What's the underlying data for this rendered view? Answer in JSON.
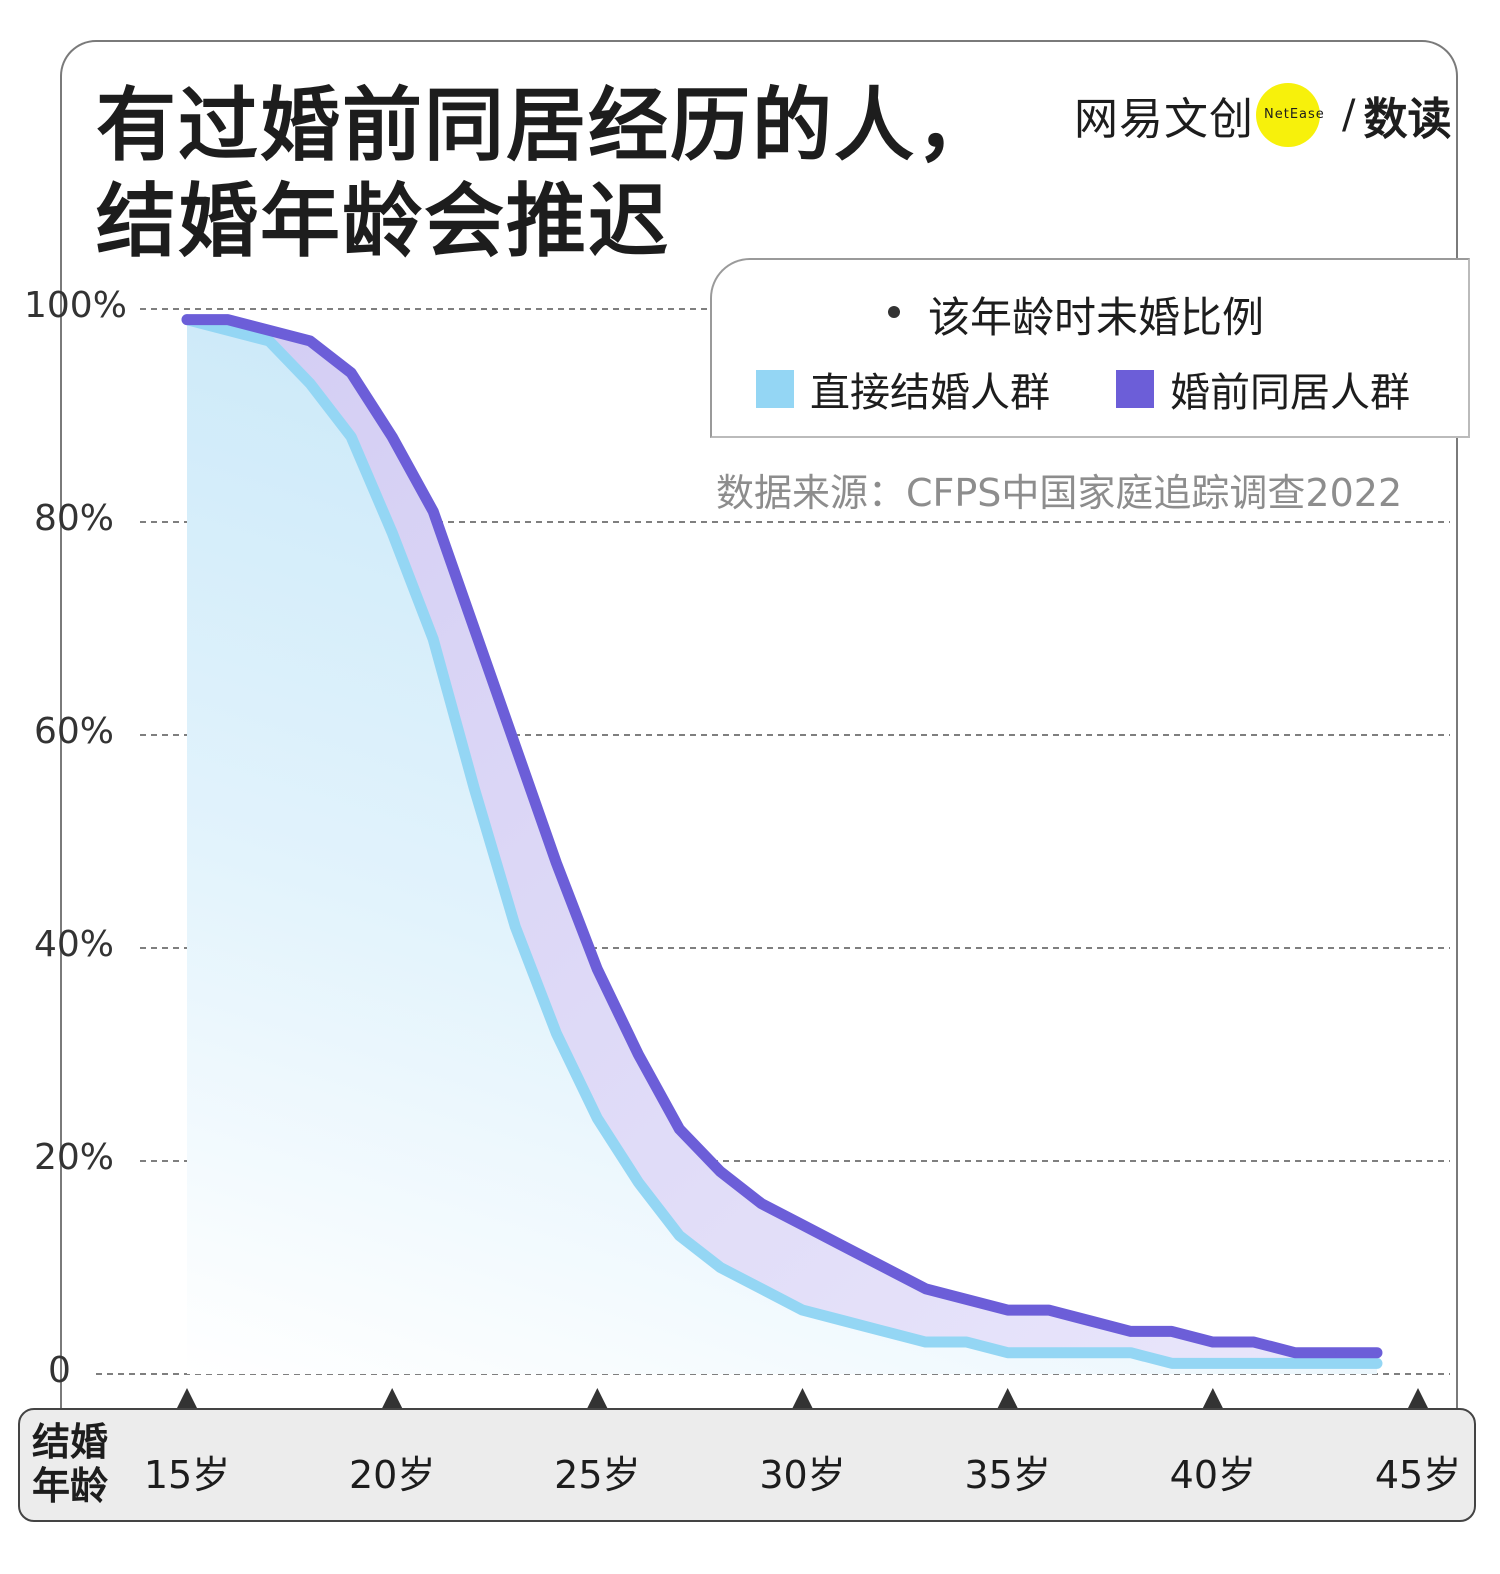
{
  "title": {
    "line1": "有过婚前同居经历的人，",
    "line2": "结婚年龄会推迟"
  },
  "brand": {
    "cn": "网易文创",
    "en": "NetEase",
    "slash": "/",
    "shudu": "数读"
  },
  "legend": {
    "title": "该年龄时未婚比例",
    "items": [
      {
        "label": "直接结婚人群",
        "color": "#94d6f4"
      },
      {
        "label": "婚前同居人群",
        "color": "#6c5ed8"
      }
    ]
  },
  "source": "数据来源：CFPS中国家庭追踪调查2022",
  "x_axis_title": [
    "结婚",
    "年龄"
  ],
  "chart_data": {
    "type": "area",
    "title": "有过婚前同居经历的人，结婚年龄会推迟",
    "xlabel": "结婚年龄",
    "ylabel": "该年龄时未婚比例",
    "x_ticks": [
      15,
      20,
      25,
      30,
      35,
      40,
      45
    ],
    "x_tick_labels": [
      "15岁",
      "20岁",
      "25岁",
      "30岁",
      "35岁",
      "40岁",
      "45岁"
    ],
    "y_ticks": [
      0,
      20,
      40,
      60,
      80,
      100
    ],
    "y_tick_labels": [
      "0",
      "20%",
      "40%",
      "60%",
      "80%",
      "100%"
    ],
    "xlim": [
      15,
      45
    ],
    "ylim": [
      0,
      100
    ],
    "x": [
      15,
      16,
      17,
      18,
      19,
      20,
      21,
      22,
      23,
      24,
      25,
      26,
      27,
      28,
      29,
      30,
      31,
      32,
      33,
      34,
      35,
      36,
      37,
      38,
      39,
      40,
      41,
      42,
      43,
      44
    ],
    "series": [
      {
        "name": "直接结婚人群",
        "color": "#94d6f4",
        "values": [
          99,
          98,
          97,
          93,
          88,
          79,
          69,
          55,
          42,
          32,
          24,
          18,
          13,
          10,
          8,
          6,
          5,
          4,
          3,
          3,
          2,
          2,
          2,
          2,
          1,
          1,
          1,
          1,
          1,
          1
        ]
      },
      {
        "name": "婚前同居人群",
        "color": "#6c5ed8",
        "values": [
          99,
          99,
          98,
          97,
          94,
          88,
          81,
          70,
          59,
          48,
          38,
          30,
          23,
          19,
          16,
          14,
          12,
          10,
          8,
          7,
          6,
          6,
          5,
          4,
          4,
          3,
          3,
          2,
          2,
          2
        ]
      }
    ],
    "grid": "horizontal dashed",
    "legend_position": "top-right"
  }
}
